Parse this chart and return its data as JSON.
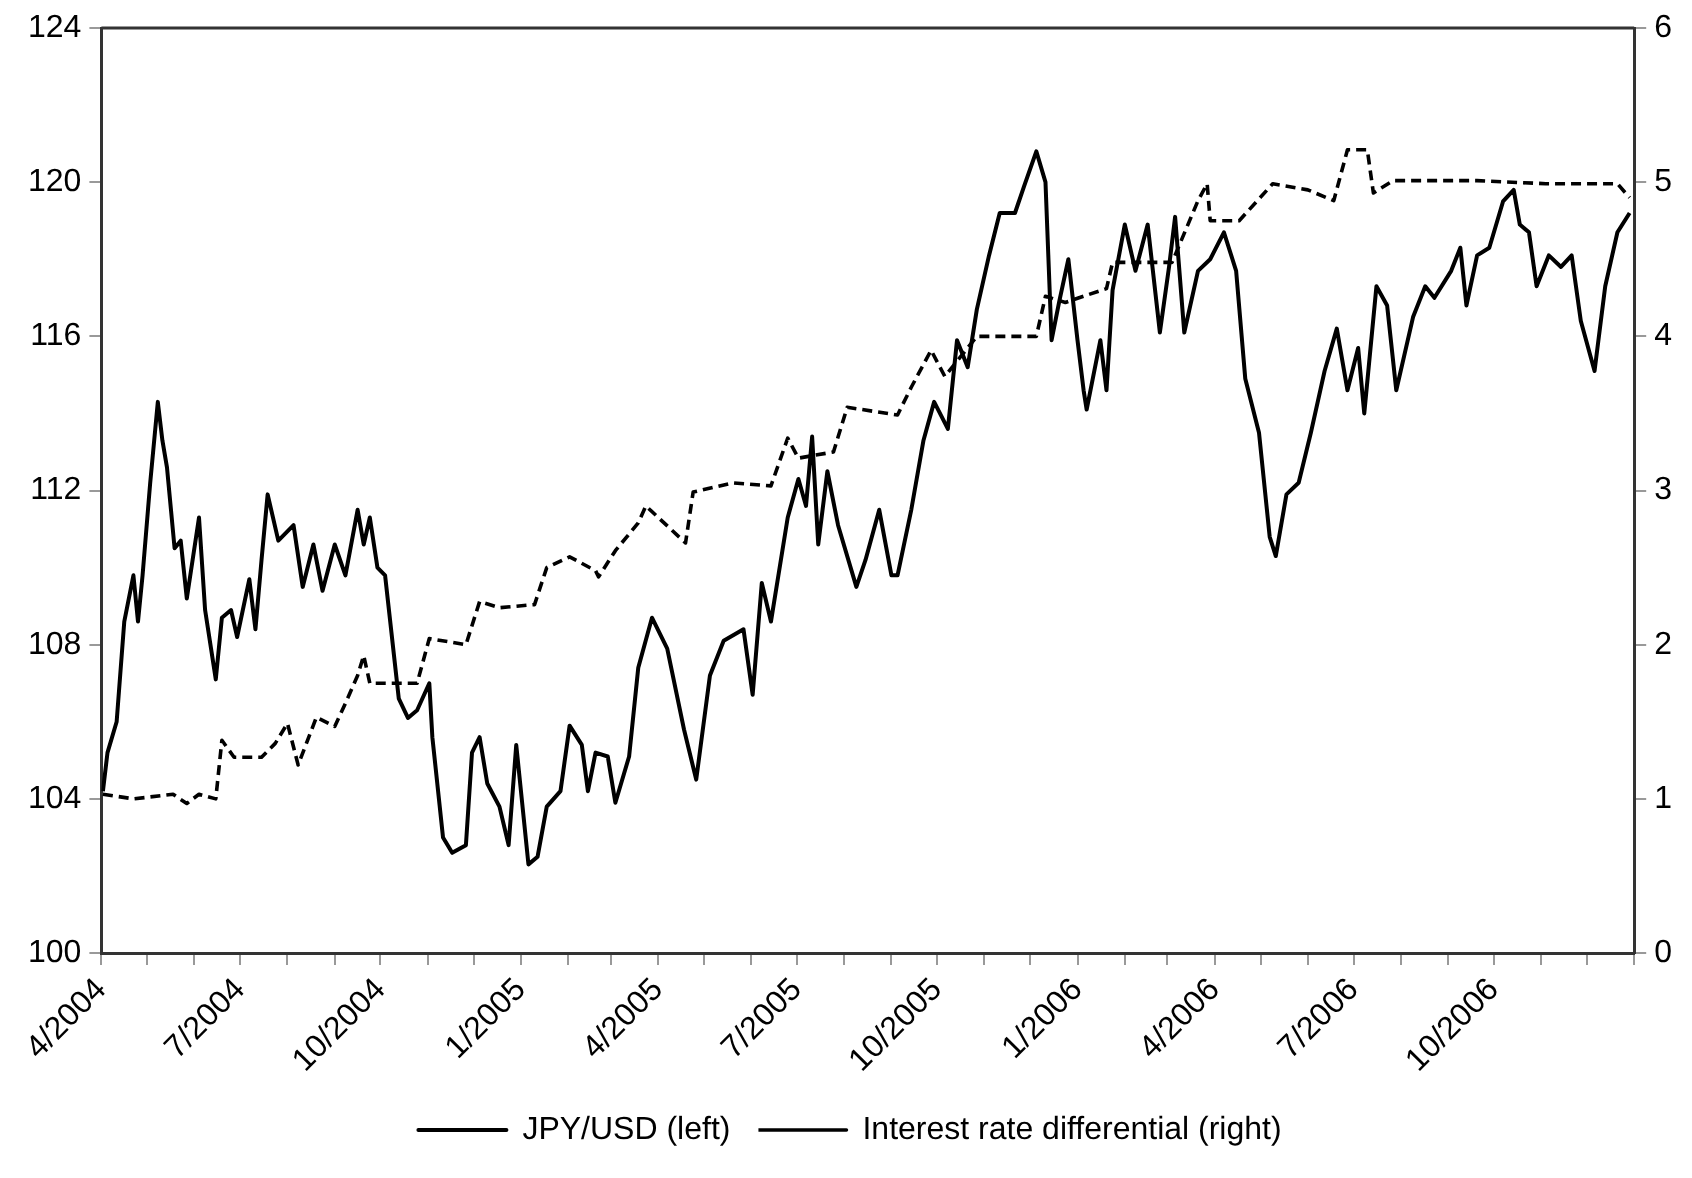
{
  "chart_data": {
    "type": "line",
    "legend": "bottom",
    "grid": false,
    "marker": "none",
    "xlim": [
      "2004-04-01",
      "2007-01-01"
    ],
    "xticks": [
      {
        "value": "2004-04-01",
        "label": "4/2004"
      },
      {
        "value": "2004-05-01",
        "label": null
      },
      {
        "value": "2004-06-01",
        "label": null
      },
      {
        "value": "2004-07-01",
        "label": "7/2004"
      },
      {
        "value": "2004-08-01",
        "label": null
      },
      {
        "value": "2004-09-01",
        "label": null
      },
      {
        "value": "2004-10-01",
        "label": "10/2004"
      },
      {
        "value": "2004-11-01",
        "label": null
      },
      {
        "value": "2004-12-01",
        "label": null
      },
      {
        "value": "2005-01-01",
        "label": "1/2005"
      },
      {
        "value": "2005-02-01",
        "label": null
      },
      {
        "value": "2005-03-01",
        "label": null
      },
      {
        "value": "2005-04-01",
        "label": "4/2005"
      },
      {
        "value": "2005-05-01",
        "label": null
      },
      {
        "value": "2005-06-01",
        "label": null
      },
      {
        "value": "2005-07-01",
        "label": "7/2005"
      },
      {
        "value": "2005-08-01",
        "label": null
      },
      {
        "value": "2005-09-01",
        "label": null
      },
      {
        "value": "2005-10-01",
        "label": "10/2005"
      },
      {
        "value": "2005-11-01",
        "label": null
      },
      {
        "value": "2005-12-01",
        "label": null
      },
      {
        "value": "2006-01-01",
        "label": "1/2006"
      },
      {
        "value": "2006-02-01",
        "label": null
      },
      {
        "value": "2006-03-01",
        "label": null
      },
      {
        "value": "2006-04-01",
        "label": "4/2006"
      },
      {
        "value": "2006-05-01",
        "label": null
      },
      {
        "value": "2006-06-01",
        "label": null
      },
      {
        "value": "2006-07-01",
        "label": "7/2006"
      },
      {
        "value": "2006-08-01",
        "label": null
      },
      {
        "value": "2006-09-01",
        "label": null
      },
      {
        "value": "2006-10-01",
        "label": "10/2006"
      },
      {
        "value": "2006-11-01",
        "label": null
      },
      {
        "value": "2006-12-01",
        "label": null
      },
      {
        "value": "2007-01-01",
        "label": null
      }
    ],
    "ylim": [
      100,
      124
    ],
    "yticks": [
      100,
      104,
      108,
      112,
      116,
      120,
      124
    ],
    "y2lim": [
      0,
      6
    ],
    "y2ticks": [
      0,
      1,
      2,
      3,
      4,
      5,
      6
    ],
    "series": [
      {
        "name": "JPY/USD (left)",
        "color": "#000000",
        "line_style": "solid",
        "x": [
          "2004-04-02",
          "2004-04-05",
          "2004-04-11",
          "2004-04-16",
          "2004-04-22",
          "2004-04-25",
          "2004-04-28",
          "2004-05-03",
          "2004-05-08",
          "2004-05-11",
          "2004-05-14",
          "2004-05-19",
          "2004-05-23",
          "2004-05-27",
          "2004-06-04",
          "2004-06-08",
          "2004-06-15",
          "2004-06-19",
          "2004-06-25",
          "2004-06-29",
          "2004-07-07",
          "2004-07-11",
          "2004-07-15",
          "2004-07-19",
          "2004-07-26",
          "2004-08-05",
          "2004-08-11",
          "2004-08-18",
          "2004-08-24",
          "2004-09-01",
          "2004-09-08",
          "2004-09-16",
          "2004-09-20",
          "2004-09-24",
          "2004-09-29",
          "2004-10-04",
          "2004-10-13",
          "2004-10-19",
          "2004-10-25",
          "2004-11-02",
          "2004-11-04",
          "2004-11-11",
          "2004-11-17",
          "2004-11-26",
          "2004-11-30",
          "2004-12-05",
          "2004-12-10",
          "2004-12-18",
          "2004-12-24",
          "2004-12-29",
          "2005-01-06",
          "2005-01-12",
          "2005-01-18",
          "2005-01-27",
          "2005-02-02",
          "2005-02-10",
          "2005-02-14",
          "2005-02-19",
          "2005-02-27",
          "2005-03-04",
          "2005-03-13",
          "2005-03-19",
          "2005-03-28",
          "2005-04-07",
          "2005-04-18",
          "2005-04-26",
          "2005-05-05",
          "2005-05-14",
          "2005-05-27",
          "2005-06-02",
          "2005-06-08",
          "2005-06-14",
          "2005-06-25",
          "2005-07-02",
          "2005-07-07",
          "2005-07-11",
          "2005-07-15",
          "2005-07-21",
          "2005-07-28",
          "2005-08-09",
          "2005-08-15",
          "2005-08-24",
          "2005-09-01",
          "2005-09-05",
          "2005-09-14",
          "2005-09-22",
          "2005-09-29",
          "2005-10-08",
          "2005-10-14",
          "2005-10-21",
          "2005-10-27",
          "2005-11-04",
          "2005-11-11",
          "2005-11-21",
          "2005-11-27",
          "2005-12-05",
          "2005-12-11",
          "2005-12-15",
          "2005-12-20",
          "2005-12-26",
          "2006-01-01",
          "2006-01-05",
          "2006-01-07",
          "2006-01-16",
          "2006-01-20",
          "2006-01-24",
          "2006-02-01",
          "2006-02-08",
          "2006-02-16",
          "2006-02-24",
          "2006-03-02",
          "2006-03-06",
          "2006-03-12",
          "2006-03-21",
          "2006-03-29",
          "2006-04-07",
          "2006-04-15",
          "2006-04-21",
          "2006-04-30",
          "2006-05-07",
          "2006-05-11",
          "2006-05-18",
          "2006-05-26",
          "2006-06-03",
          "2006-06-12",
          "2006-06-20",
          "2006-06-27",
          "2006-07-04",
          "2006-07-08",
          "2006-07-16",
          "2006-07-23",
          "2006-07-29",
          "2006-08-09",
          "2006-08-17",
          "2006-08-23",
          "2006-09-03",
          "2006-09-09",
          "2006-09-13",
          "2006-09-20",
          "2006-09-28",
          "2006-10-07",
          "2006-10-14",
          "2006-10-18",
          "2006-10-24",
          "2006-10-29",
          "2006-11-06",
          "2006-11-14",
          "2006-11-21",
          "2006-11-27",
          "2006-12-06",
          "2006-12-13",
          "2006-12-21",
          "2006-12-29"
        ],
        "values": [
          104.2,
          105.2,
          106.0,
          108.6,
          109.8,
          108.6,
          109.8,
          112.2,
          114.3,
          113.3,
          112.6,
          110.5,
          110.7,
          109.2,
          111.3,
          108.9,
          107.1,
          108.7,
          108.9,
          108.2,
          109.7,
          108.4,
          110.2,
          111.9,
          110.7,
          111.1,
          109.5,
          110.6,
          109.4,
          110.6,
          109.8,
          111.5,
          110.6,
          111.3,
          110.0,
          109.8,
          106.6,
          106.1,
          106.3,
          107.0,
          105.6,
          103.0,
          102.6,
          102.8,
          105.2,
          105.6,
          104.4,
          103.8,
          102.8,
          105.4,
          102.3,
          102.5,
          103.8,
          104.2,
          105.9,
          105.4,
          104.2,
          105.2,
          105.1,
          103.9,
          105.1,
          107.4,
          108.7,
          107.9,
          105.8,
          104.5,
          107.2,
          108.1,
          108.4,
          106.7,
          109.6,
          108.6,
          111.3,
          112.3,
          111.6,
          113.4,
          110.6,
          112.5,
          111.1,
          109.5,
          110.2,
          111.5,
          109.8,
          109.8,
          111.5,
          113.3,
          114.3,
          113.6,
          115.9,
          115.2,
          116.7,
          118.1,
          119.2,
          119.2,
          119.9,
          120.8,
          120.0,
          115.9,
          116.9,
          118.0,
          115.9,
          114.6,
          114.1,
          115.9,
          114.6,
          117.2,
          118.9,
          117.7,
          118.9,
          116.1,
          117.8,
          119.1,
          116.1,
          117.7,
          118.0,
          118.7,
          117.7,
          114.9,
          113.5,
          110.8,
          110.3,
          111.9,
          112.2,
          113.5,
          115.1,
          116.2,
          114.6,
          115.7,
          114.0,
          117.3,
          116.8,
          114.6,
          116.5,
          117.3,
          117.0,
          117.7,
          118.3,
          116.8,
          118.1,
          118.3,
          119.5,
          119.8,
          118.9,
          118.7,
          117.3,
          118.1,
          117.8,
          118.1,
          116.4,
          115.1,
          117.3,
          118.7,
          119.2
        ]
      },
      {
        "name": "Interest rate differential (right)",
        "color": "#000000",
        "line_style": "dashed",
        "axis": "y2",
        "x": [
          "2004-04-02",
          "2004-04-22",
          "2004-05-18",
          "2004-05-27",
          "2004-06-04",
          "2004-06-15",
          "2004-06-19",
          "2004-06-27",
          "2004-07-15",
          "2004-07-24",
          "2004-08-01",
          "2004-08-08",
          "2004-08-20",
          "2004-09-01",
          "2004-09-08",
          "2004-09-16",
          "2004-09-20",
          "2004-09-24",
          "2004-10-13",
          "2004-10-25",
          "2004-11-02",
          "2004-11-26",
          "2004-12-05",
          "2004-12-18",
          "2005-01-10",
          "2005-01-18",
          "2005-02-02",
          "2005-02-19",
          "2005-02-21",
          "2005-03-04",
          "2005-03-19",
          "2005-03-24",
          "2005-04-19",
          "2005-04-24",
          "2005-05-20",
          "2005-06-14",
          "2005-06-25",
          "2005-07-02",
          "2005-07-25",
          "2005-08-03",
          "2005-09-05",
          "2005-09-14",
          "2005-09-27",
          "2005-10-06",
          "2005-10-27",
          "2005-12-05",
          "2005-12-11",
          "2005-12-24",
          "2006-01-20",
          "2006-01-24",
          "2006-03-04",
          "2006-03-21",
          "2006-03-27",
          "2006-03-29",
          "2006-04-17",
          "2006-05-09",
          "2006-06-01",
          "2006-06-18",
          "2006-06-27",
          "2006-07-10",
          "2006-07-14",
          "2006-07-27",
          "2006-09-20",
          "2006-11-04",
          "2006-12-21",
          "2006-12-29"
        ],
        "values": [
          1.03,
          1.0,
          1.03,
          0.97,
          1.03,
          1.0,
          1.38,
          1.27,
          1.27,
          1.36,
          1.49,
          1.22,
          1.53,
          1.47,
          1.62,
          1.8,
          1.93,
          1.75,
          1.75,
          1.75,
          2.04,
          2.0,
          2.28,
          2.24,
          2.26,
          2.5,
          2.57,
          2.48,
          2.44,
          2.61,
          2.79,
          2.9,
          2.66,
          2.99,
          3.05,
          3.03,
          3.34,
          3.21,
          3.25,
          3.54,
          3.49,
          3.67,
          3.91,
          3.74,
          4.0,
          4.0,
          4.26,
          4.22,
          4.31,
          4.48,
          4.48,
          4.88,
          4.99,
          4.75,
          4.75,
          4.99,
          4.95,
          4.88,
          5.21,
          5.21,
          4.93,
          5.01,
          5.01,
          4.99,
          4.99,
          4.9
        ]
      }
    ]
  }
}
